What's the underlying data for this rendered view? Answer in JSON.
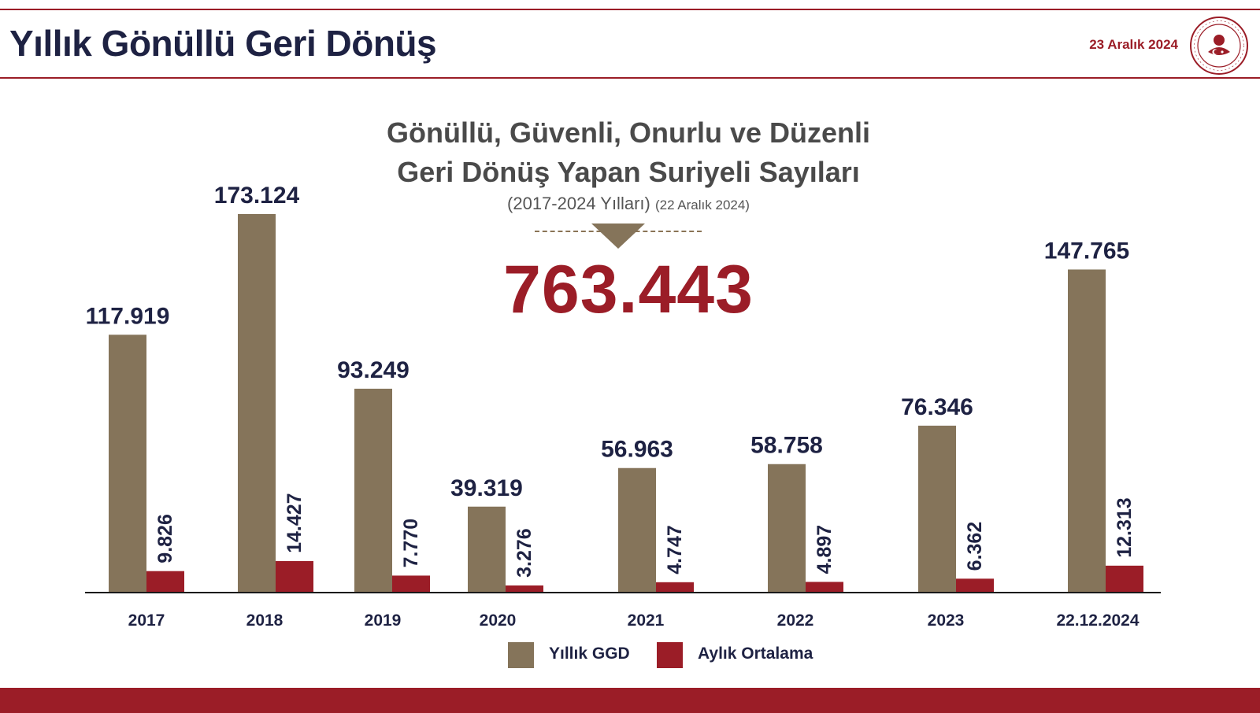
{
  "header": {
    "title": "Yıllık Gönüllü Geri Dönüş",
    "date": "23 Aralık 2024"
  },
  "chart_heading": {
    "line1": "Gönüllü, Güvenli, Onurlu ve Düzenli",
    "line2": "Geri Dönüş Yapan Suriyeli Sayıları",
    "period": "(2017-2024 Yılları)",
    "as_of": "(22 Aralık 2024)",
    "total": "763.443"
  },
  "colors": {
    "accent": "#9b1d27",
    "annual_bar": "#85745a",
    "monthly_bar": "#9b1d27",
    "text_dark": "#1e2243"
  },
  "chart_data": {
    "type": "bar",
    "title": "Gönüllü, Güvenli, Onurlu ve Düzenli Geri Dönüş Yapan Suriyeli Sayıları",
    "categories": [
      "2017",
      "2018",
      "2019",
      "2020",
      "2021",
      "2022",
      "2023",
      "22.12.2024"
    ],
    "series": [
      {
        "name": "Yıllık GGD",
        "values": [
          117919,
          173124,
          93249,
          39319,
          56963,
          58758,
          76346,
          147765
        ],
        "labels": [
          "117.919",
          "173.124",
          "93.249",
          "39.319",
          "56.963",
          "58.758",
          "76.346",
          "147.765"
        ]
      },
      {
        "name": "Aylık Ortalama",
        "values": [
          9826,
          14427,
          7770,
          3276,
          4747,
          4897,
          6362,
          12313
        ],
        "labels": [
          "9.826",
          "14.427",
          "7.770",
          "3.276",
          "4.747",
          "4.897",
          "6.362",
          "12.313"
        ]
      }
    ],
    "ylim": [
      0,
      173124
    ],
    "legend": "bottom-center",
    "grid": false
  }
}
